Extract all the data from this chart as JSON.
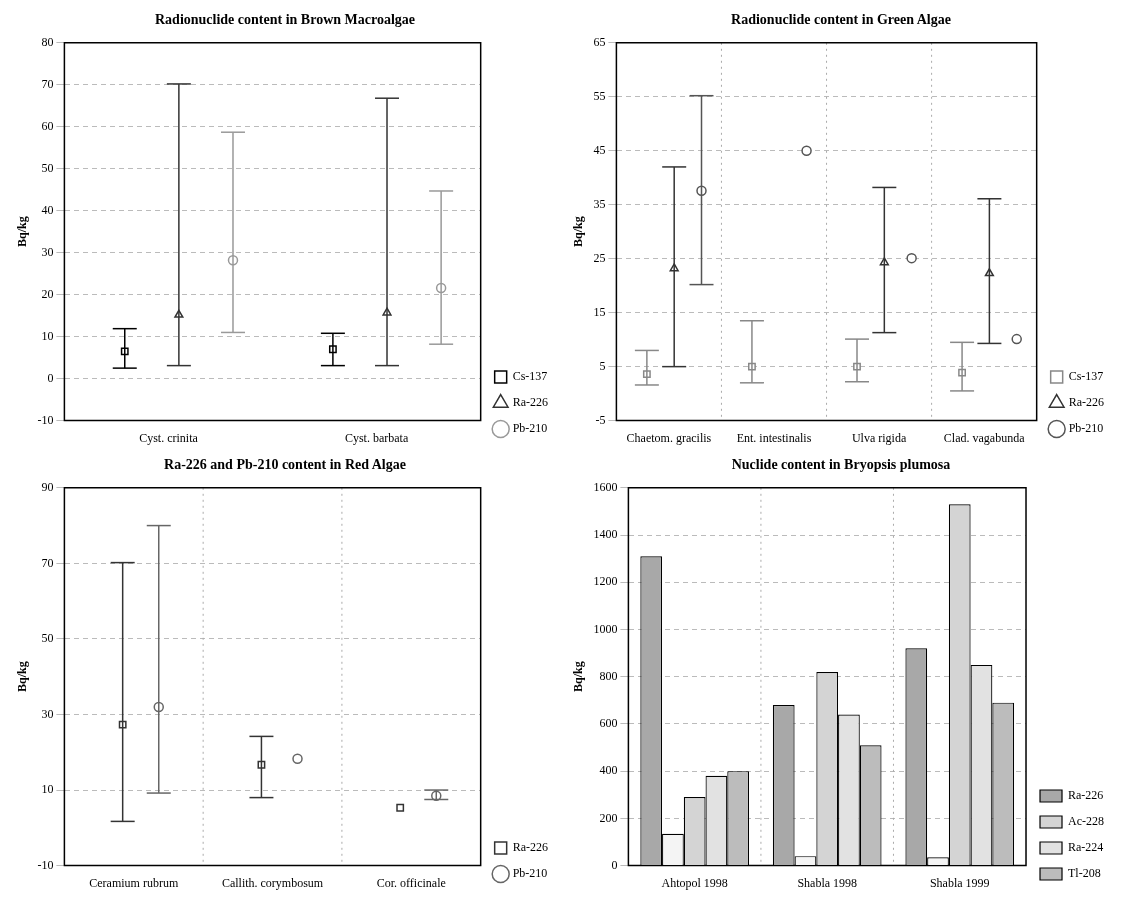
{
  "chart_data": [
    {
      "type": "scatter",
      "title": "Radionuclide content in Brown Macroalgae",
      "ylabel": "Bq/kg",
      "categories": [
        "Cyst. crinita",
        "Cyst. barbata"
      ],
      "ylim": [
        -10,
        80
      ],
      "yticks": [
        -10,
        0,
        10,
        20,
        30,
        40,
        50,
        60,
        70,
        80
      ],
      "grid": "y",
      "legend": "bottom right",
      "series": [
        {
          "name": "Cs-137",
          "color": "#000000",
          "marker": "square",
          "values": [
            6.5,
            7
          ],
          "errors": [
            [
              2.5,
              11.9
            ],
            [
              3.1,
              10.8
            ]
          ]
        },
        {
          "name": "Ra-226",
          "color": "#333333",
          "marker": "triangle",
          "values": [
            15.2,
            15.7
          ],
          "errors": [
            [
              3.1,
              70.2
            ],
            [
              3.1,
              66.8
            ]
          ]
        },
        {
          "name": "Pb-210",
          "color": "#999999",
          "marker": "circle",
          "values": [
            28.2,
            21.6
          ],
          "errors": [
            [
              11,
              58.7
            ],
            [
              8.2,
              44.7
            ]
          ]
        }
      ]
    },
    {
      "type": "scatter",
      "title": "Radionuclide content in Green Algae",
      "ylabel": "Bq/kg",
      "categories": [
        "Chaetom. gracilis",
        "Ent. intestinalis",
        "Ulva rigida",
        "Clad. vagabunda"
      ],
      "ylim": [
        -5,
        65
      ],
      "yticks": [
        -5,
        5,
        15,
        25,
        35,
        45,
        55,
        65
      ],
      "grid": true,
      "legend": "bottom right",
      "series": [
        {
          "name": "Cs-137",
          "color": "#888888",
          "marker": "square",
          "values": [
            3.6,
            5,
            5,
            3.9
          ],
          "errors": [
            [
              1.6,
              8.0
            ],
            [
              2.0,
              13.5
            ],
            [
              2.2,
              10.1
            ],
            [
              0.5,
              9.5
            ]
          ]
        },
        {
          "name": "Ra-226",
          "color": "#333333",
          "marker": "triangle",
          "values": [
            23.2,
            null,
            24.3,
            22.3
          ],
          "errors": [
            [
              5,
              42.0
            ],
            null,
            [
              11.3,
              38.2
            ],
            [
              9.3,
              36.1
            ]
          ]
        },
        {
          "name": "Pb-210",
          "color": "#555555",
          "marker": "circle",
          "values": [
            37.6,
            45,
            25.1,
            10.1
          ],
          "errors": [
            [
              20.2,
              55.2
            ],
            null,
            null,
            null
          ]
        }
      ]
    },
    {
      "type": "scatter",
      "title": "Ra-226 and Pb-210 content in Red Algae",
      "ylabel": "Bq/kg",
      "categories": [
        "Ceramium rubrum",
        "Callith. corymbosum",
        "Cor. officinale"
      ],
      "ylim": [
        -10,
        90
      ],
      "yticks": [
        -10,
        10,
        30,
        50,
        70,
        90
      ],
      "grid": true,
      "legend": "bottom right",
      "series": [
        {
          "name": "Ra-226",
          "color": "#333333",
          "marker": "square",
          "values": [
            27.3,
            16.7,
            5.3
          ],
          "errors": [
            [
              1.7,
              70.2
            ],
            [
              8,
              24.2
            ],
            null
          ]
        },
        {
          "name": "Pb-210",
          "color": "#666666",
          "marker": "circle",
          "values": [
            32,
            18.3,
            8.5
          ],
          "errors": [
            [
              9.2,
              80
            ],
            null,
            [
              7.5,
              10
            ]
          ]
        }
      ]
    },
    {
      "type": "bar",
      "title": "Nuclide content in Bryopsis plumosa",
      "ylabel": "Bq/kg",
      "categories": [
        "Ahtopol 1998",
        "Shabla 1998",
        "Shabla 1999"
      ],
      "ylim": [
        0,
        1600
      ],
      "yticks": [
        0,
        200,
        400,
        600,
        800,
        1000,
        1200,
        1400,
        1600
      ],
      "grid": true,
      "legend": "bottom right",
      "series": [
        {
          "name": "Ra-226",
          "color": "#a8a8a8",
          "values": [
            1310,
            680,
            920
          ]
        },
        {
          "color": "#f4f4f4",
          "values": [
            135,
            40,
            35
          ]
        },
        {
          "name": "Ac-228",
          "color": "#d4d4d4",
          "values": [
            290,
            820,
            1530
          ]
        },
        {
          "name": "Ra-224",
          "color": "#e2e2e2",
          "values": [
            380,
            640,
            850
          ]
        },
        {
          "name": "Tl-208",
          "color": "#bcbcbc",
          "values": [
            400,
            510,
            690
          ]
        }
      ]
    }
  ]
}
